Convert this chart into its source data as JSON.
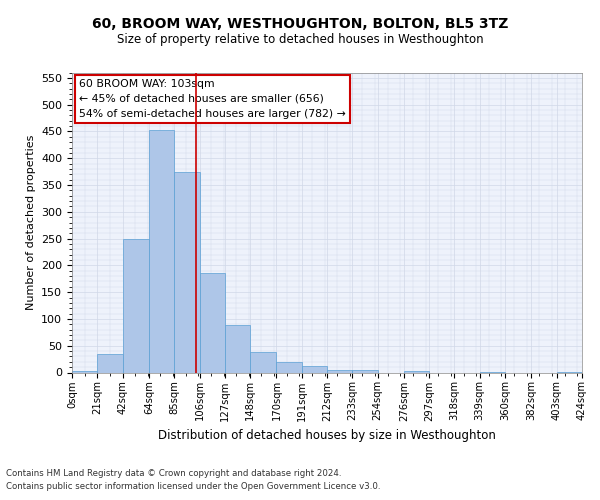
{
  "title1": "60, BROOM WAY, WESTHOUGHTON, BOLTON, BL5 3TZ",
  "title2": "Size of property relative to detached houses in Westhoughton",
  "xlabel": "Distribution of detached houses by size in Westhoughton",
  "ylabel": "Number of detached properties",
  "footer1": "Contains HM Land Registry data © Crown copyright and database right 2024.",
  "footer2": "Contains public sector information licensed under the Open Government Licence v3.0.",
  "annotation_line1": "60 BROOM WAY: 103sqm",
  "annotation_line2": "← 45% of detached houses are smaller (656)",
  "annotation_line3": "54% of semi-detached houses are larger (782) →",
  "property_size": 103,
  "bin_edges": [
    0,
    21,
    42,
    64,
    85,
    106,
    127,
    148,
    170,
    191,
    212,
    233,
    254,
    276,
    297,
    318,
    339,
    360,
    382,
    403,
    424
  ],
  "bar_heights": [
    2,
    35,
    250,
    452,
    375,
    185,
    88,
    38,
    20,
    12,
    5,
    4,
    0,
    2,
    0,
    0,
    1,
    0,
    0,
    1
  ],
  "bar_color": "#aec6e8",
  "bar_edge_color": "#5a9fd4",
  "vline_color": "#cc0000",
  "annotation_box_edge": "#cc0000",
  "annotation_box_face": "#ffffff",
  "ylim": [
    0,
    560
  ],
  "yticks": [
    0,
    50,
    100,
    150,
    200,
    250,
    300,
    350,
    400,
    450,
    500,
    550
  ],
  "grid_color": "#d0d8e8",
  "bg_color": "#eef2fb"
}
